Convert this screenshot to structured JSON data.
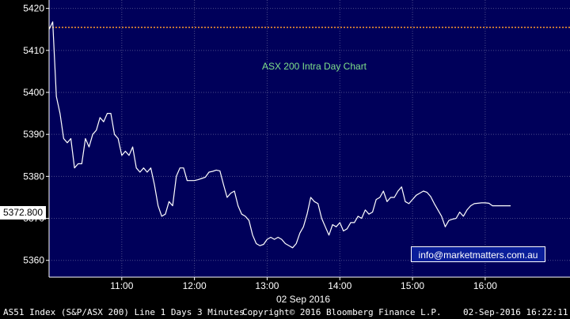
{
  "chart_data": {
    "type": "line",
    "annotation": "ASX 200 Intra Day Chart",
    "date_label": "02 Sep 2016",
    "x_ticks": [
      "11:00",
      "12:00",
      "13:00",
      "14:00",
      "15:00",
      "16:00"
    ],
    "y_ticks": [
      5360,
      5370,
      5380,
      5390,
      5400,
      5410,
      5420
    ],
    "ylim": [
      5356,
      5422
    ],
    "xlim": [
      "10:00",
      "17:10"
    ],
    "reference_level": 5415.5,
    "last_value_label": "5372.800",
    "grid": true,
    "x": [
      "10:00",
      "10:03",
      "10:06",
      "10:09",
      "10:12",
      "10:15",
      "10:18",
      "10:21",
      "10:24",
      "10:27",
      "10:30",
      "10:33",
      "10:36",
      "10:39",
      "10:42",
      "10:45",
      "10:48",
      "10:51",
      "10:54",
      "10:57",
      "11:00",
      "11:03",
      "11:06",
      "11:09",
      "11:12",
      "11:15",
      "11:18",
      "11:21",
      "11:24",
      "11:27",
      "11:30",
      "11:33",
      "11:36",
      "11:39",
      "11:42",
      "11:45",
      "11:48",
      "11:51",
      "11:54",
      "11:57",
      "12:00",
      "12:03",
      "12:06",
      "12:09",
      "12:12",
      "12:15",
      "12:18",
      "12:21",
      "12:24",
      "12:27",
      "12:30",
      "12:33",
      "12:36",
      "12:39",
      "12:42",
      "12:45",
      "12:48",
      "12:51",
      "12:54",
      "12:57",
      "13:00",
      "13:03",
      "13:06",
      "13:09",
      "13:12",
      "13:15",
      "13:18",
      "13:21",
      "13:24",
      "13:27",
      "13:30",
      "13:33",
      "13:36",
      "13:39",
      "13:42",
      "13:45",
      "13:48",
      "13:51",
      "13:54",
      "13:57",
      "14:00",
      "14:03",
      "14:06",
      "14:09",
      "14:12",
      "14:15",
      "14:18",
      "14:21",
      "14:24",
      "14:27",
      "14:30",
      "14:33",
      "14:36",
      "14:39",
      "14:42",
      "14:45",
      "14:48",
      "14:51",
      "14:54",
      "14:57",
      "15:00",
      "15:03",
      "15:06",
      "15:09",
      "15:12",
      "15:15",
      "15:18",
      "15:21",
      "15:24",
      "15:27",
      "15:30",
      "15:33",
      "15:36",
      "15:39",
      "15:42",
      "15:45",
      "15:48",
      "15:51",
      "15:54",
      "15:57",
      "16:00",
      "16:03",
      "16:06",
      "16:09",
      "16:12",
      "16:15",
      "16:18",
      "16:21"
    ],
    "series": [
      {
        "values": [
          5415.0,
          5416.8,
          5399.0,
          5395.0,
          5389.0,
          5388.0,
          5389.0,
          5382.0,
          5383.0,
          5383.0,
          5389.0,
          5387.0,
          5390.0,
          5391.0,
          5394.0,
          5393.0,
          5395.0,
          5395.0,
          5390.0,
          5389.0,
          5385.0,
          5386.0,
          5385.0,
          5387.0,
          5382.0,
          5381.0,
          5382.0,
          5381.0,
          5382.0,
          5378.0,
          5373.0,
          5370.5,
          5371.0,
          5374.0,
          5373.0,
          5380.0,
          5382.0,
          5382.0,
          5379.0,
          5379.0,
          5379.0,
          5379.2,
          5379.5,
          5379.8,
          5381.0,
          5381.2,
          5381.5,
          5381.3,
          5378.0,
          5375.0,
          5376.0,
          5376.5,
          5373.0,
          5371.0,
          5370.5,
          5369.5,
          5366.0,
          5364.0,
          5363.5,
          5363.8,
          5365.0,
          5365.5,
          5365.0,
          5365.5,
          5365.0,
          5364.0,
          5363.5,
          5363.0,
          5364.0,
          5366.5,
          5368.0,
          5371.0,
          5375.0,
          5374.0,
          5373.5,
          5370.0,
          5368.0,
          5366.0,
          5368.5,
          5368.0,
          5369.0,
          5367.0,
          5367.5,
          5369.0,
          5369.0,
          5370.5,
          5370.0,
          5372.0,
          5371.0,
          5371.5,
          5374.5,
          5375.0,
          5376.5,
          5374.0,
          5375.0,
          5375.0,
          5376.5,
          5377.5,
          5374.0,
          5373.5,
          5374.5,
          5375.5,
          5376.0,
          5376.5,
          5376.2,
          5375.2,
          5373.5,
          5372.0,
          5370.5,
          5368.0,
          5369.5,
          5369.8,
          5370.0,
          5371.5,
          5370.5,
          5372.0,
          5373.0,
          5373.5,
          5373.6,
          5373.7,
          5373.7,
          5373.6,
          5373.0,
          5373.0,
          5373.0,
          5373.0,
          5373.0,
          5373.0
        ]
      }
    ]
  },
  "watermark": "info@marketmatters.com.au",
  "footer": {
    "left": "AS51 Index (S&P/ASX 200) Line 1 Days 3 Minutes",
    "center": "Copyright© 2016 Bloomberg Finance L.P.",
    "right": "02-Sep-2016 16:22:11"
  },
  "colors": {
    "plot_background": "#00005a",
    "line": "#ffffff",
    "grid": "#4b4b8a",
    "reference_line": "#ff9a2e",
    "annotation": "#7fe08a"
  }
}
